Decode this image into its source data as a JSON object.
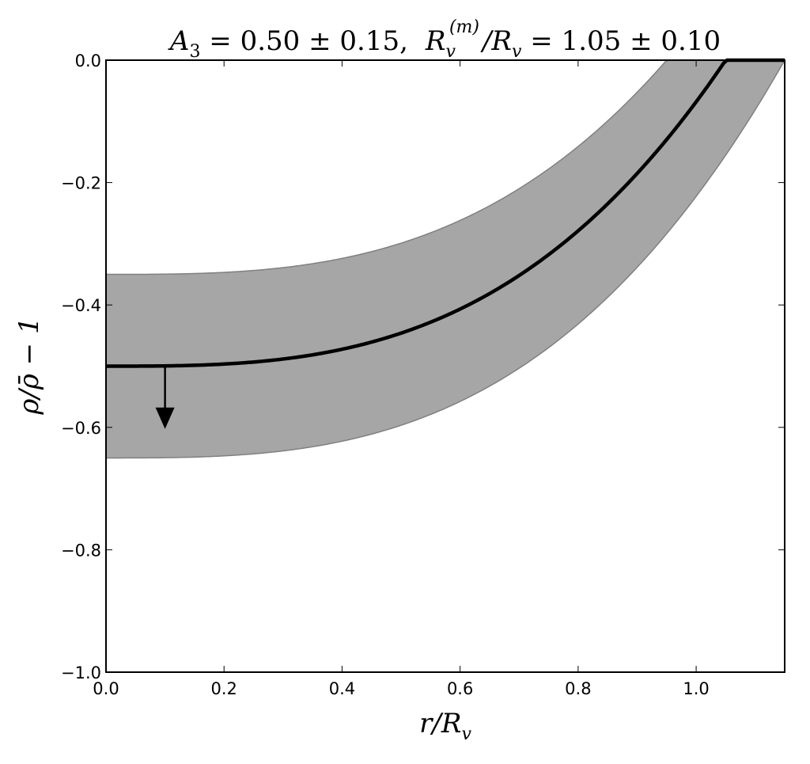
{
  "chart_data": {
    "type": "line",
    "title": "A_3 = 0.50 ± 0.15,   R_v^(m) / R_v = 1.05 ± 0.10",
    "title_parts": {
      "a_sym": "A",
      "a_sub": "3",
      "a_val": " = 0.50 ± 0.15,",
      "r_sym": "R",
      "r_sub": "v",
      "r_sup": "(m)",
      "r_den": "/R",
      "r_den_sub": "v",
      "r_val": " = 1.05 ± 0.10"
    },
    "xlabel": "r/R_v",
    "xlabel_parts": {
      "main": "r/R",
      "sub": "v"
    },
    "ylabel": "ρ/ρ̄ − 1",
    "xlim": [
      0.0,
      1.15
    ],
    "ylim": [
      -1.0,
      0.0
    ],
    "xticks": [
      "0.0",
      "0.2",
      "0.4",
      "0.6",
      "0.8",
      "1.0"
    ],
    "yticks": [
      "0.0",
      "−0.2",
      "−0.4",
      "−0.6",
      "−0.8",
      "−1.0"
    ],
    "grid": false,
    "series": [
      {
        "name": "central profile",
        "style": "solid black thick",
        "A": 0.5,
        "R": 1.05,
        "x": [
          0.0,
          0.2,
          0.4,
          0.6,
          0.8,
          0.9,
          1.0,
          1.05,
          1.15
        ],
        "y": [
          -0.5,
          -0.497,
          -0.472,
          -0.407,
          -0.279,
          -0.185,
          -0.068,
          0.0,
          0.0
        ]
      },
      {
        "name": "band upper",
        "style": "fill gray",
        "A": 0.35,
        "R": 0.95,
        "x": [
          0.0,
          0.2,
          0.4,
          0.6,
          0.8,
          0.9,
          0.95,
          1.15
        ],
        "y": [
          -0.35,
          -0.347,
          -0.324,
          -0.262,
          -0.141,
          -0.052,
          0.0,
          0.0
        ]
      },
      {
        "name": "band lower",
        "style": "fill gray",
        "A": 0.65,
        "R": 1.15,
        "x": [
          0.0,
          0.2,
          0.4,
          0.6,
          0.8,
          1.0,
          1.15
        ],
        "y": [
          -0.65,
          -0.647,
          -0.623,
          -0.558,
          -0.431,
          -0.223,
          0.0
        ]
      }
    ],
    "annotations": [
      {
        "type": "arrow",
        "x": 0.1,
        "y_from": -0.5,
        "y_to": -0.6,
        "direction": "down"
      }
    ],
    "colors": {
      "band": "#a6a6a6",
      "band_edge": "#808080",
      "line": "#000000"
    }
  }
}
